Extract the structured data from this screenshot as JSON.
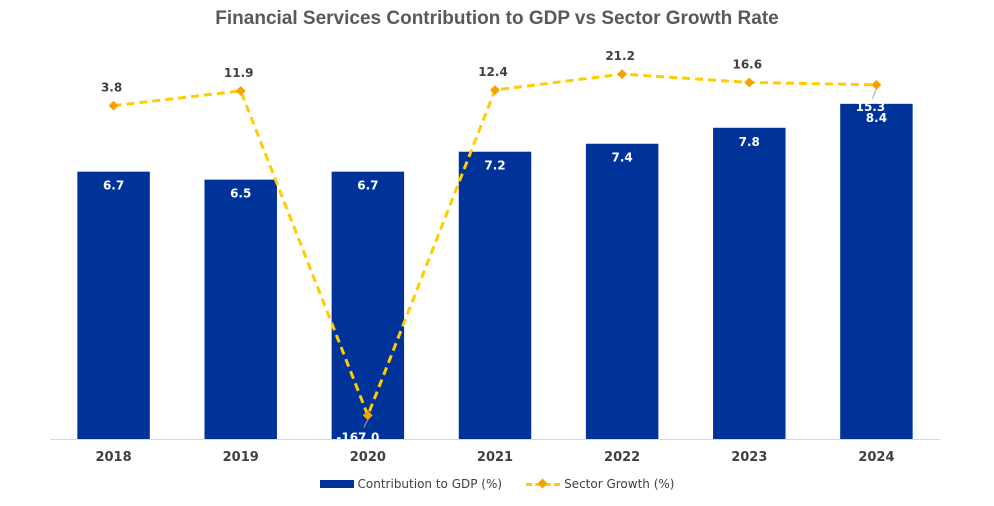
{
  "chart_data": {
    "type": "bar",
    "title": "Financial Services Contribution to GDP vs Sector Growth Rate",
    "categories": [
      "2018",
      "2019",
      "2020",
      "2021",
      "2022",
      "2023",
      "2024"
    ],
    "series": [
      {
        "name": "Contribution to GDP (%)",
        "type": "bar",
        "values": [
          6.7,
          6.5,
          6.7,
          7.2,
          7.4,
          7.8,
          8.4
        ],
        "labels": [
          "6.7",
          "6.5",
          "6.7",
          "7.2",
          "7.4",
          "7.8",
          "8.4"
        ],
        "color": "#003399",
        "ylim": [
          0,
          10
        ]
      },
      {
        "name": "Sector Growth (%)",
        "type": "line",
        "style": "dashed",
        "values": [
          3.8,
          11.9,
          -167.0,
          12.4,
          21.2,
          16.6,
          15.3
        ],
        "labels": [
          "3.8",
          "11.9",
          "-167.0",
          "12.4",
          "21.2",
          "16.6",
          "15.3"
        ],
        "color": "#ffcc00",
        "marker_color": "#f5a100",
        "ylim": [
          -180,
          40
        ]
      }
    ],
    "grid": false,
    "legend_position": "bottom"
  }
}
